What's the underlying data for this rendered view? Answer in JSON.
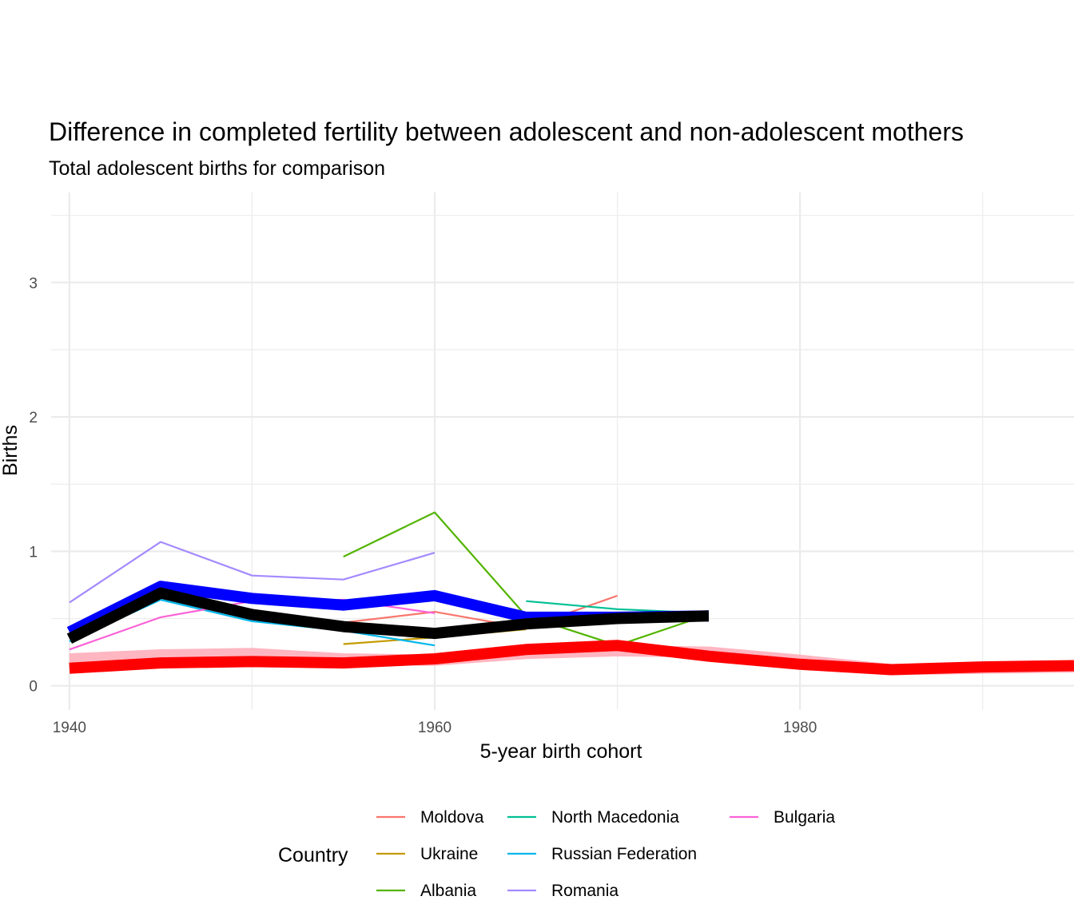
{
  "chart_data": {
    "type": "line",
    "title": "Difference in completed fertility between adolescent and non-adolescent mothers",
    "subtitle": "Total adolescent births for comparison",
    "xlabel": "5-year birth cohort",
    "ylabel": "Births",
    "xlim": [
      1939,
      1995
    ],
    "ylim": [
      -0.18,
      3.67
    ],
    "x_ticks": [
      1940,
      1960,
      1980
    ],
    "y_ticks": [
      0,
      1,
      2,
      3
    ],
    "grid": true,
    "legend": {
      "title": "Country",
      "position": "bottom",
      "entries": [
        "Moldova",
        "Ukraine",
        "Albania",
        "North Macedonia",
        "Russian Federation",
        "Romania",
        "Bulgaria"
      ]
    },
    "series": [
      {
        "name": "Moldova",
        "color": "#F8766D",
        "x": [
          1955,
          1960,
          1965,
          1970
        ],
        "values": [
          0.47,
          0.55,
          0.43,
          0.67
        ]
      },
      {
        "name": "Ukraine",
        "color": "#C49A00",
        "x": [
          1955,
          1960,
          1965
        ],
        "values": [
          0.31,
          0.36,
          0.42
        ]
      },
      {
        "name": "Albania",
        "color": "#53B400",
        "x": [
          1955,
          1960,
          1965,
          1970,
          1975
        ],
        "values": [
          0.96,
          1.29,
          0.52,
          0.3,
          0.53
        ]
      },
      {
        "name": "North Macedonia",
        "color": "#00C094",
        "x": [
          1965,
          1970,
          1975
        ],
        "values": [
          0.63,
          0.57,
          0.54
        ]
      },
      {
        "name": "Russian Federation",
        "color": "#00B6EB",
        "x": [
          1940,
          1945,
          1950,
          1955,
          1960
        ],
        "values": [
          0.33,
          0.64,
          0.48,
          0.41,
          0.3
        ]
      },
      {
        "name": "Romania",
        "color": "#A58AFF",
        "x": [
          1940,
          1945,
          1950,
          1955,
          1960
        ],
        "values": [
          0.62,
          1.07,
          0.82,
          0.79,
          0.99
        ]
      },
      {
        "name": "Bulgaria",
        "color": "#FB61D7",
        "x": [
          1940,
          1945,
          1950,
          1955,
          1960
        ],
        "values": [
          0.27,
          0.51,
          0.63,
          0.64,
          0.54
        ]
      },
      {
        "color": "#FFB6C1",
        "width": 14,
        "x": [
          1940,
          1945,
          1950,
          1955,
          1960,
          1965,
          1970,
          1975,
          1980,
          1985,
          1990,
          1995
        ],
        "values": [
          0.2,
          0.23,
          0.24,
          0.2,
          0.19,
          0.24,
          0.26,
          0.25,
          0.19,
          0.12,
          0.13,
          0.14
        ]
      },
      {
        "color": "#FF0000",
        "width": 14,
        "x": [
          1940,
          1945,
          1950,
          1955,
          1960,
          1965,
          1970,
          1975,
          1980,
          1985,
          1990,
          1995
        ],
        "values": [
          0.13,
          0.17,
          0.18,
          0.17,
          0.2,
          0.27,
          0.3,
          0.22,
          0.16,
          0.12,
          0.14,
          0.15
        ]
      },
      {
        "color": "#0000FF",
        "width": 14,
        "x": [
          1940,
          1945,
          1950,
          1955,
          1960,
          1965,
          1970,
          1975
        ],
        "values": [
          0.4,
          0.74,
          0.65,
          0.6,
          0.67,
          0.51,
          0.51,
          0.52
        ]
      },
      {
        "color": "#000000",
        "width": 14,
        "x": [
          1940,
          1945,
          1950,
          1955,
          1960,
          1965,
          1970,
          1975
        ],
        "values": [
          0.35,
          0.69,
          0.53,
          0.44,
          0.39,
          0.46,
          0.5,
          0.52
        ]
      }
    ]
  }
}
